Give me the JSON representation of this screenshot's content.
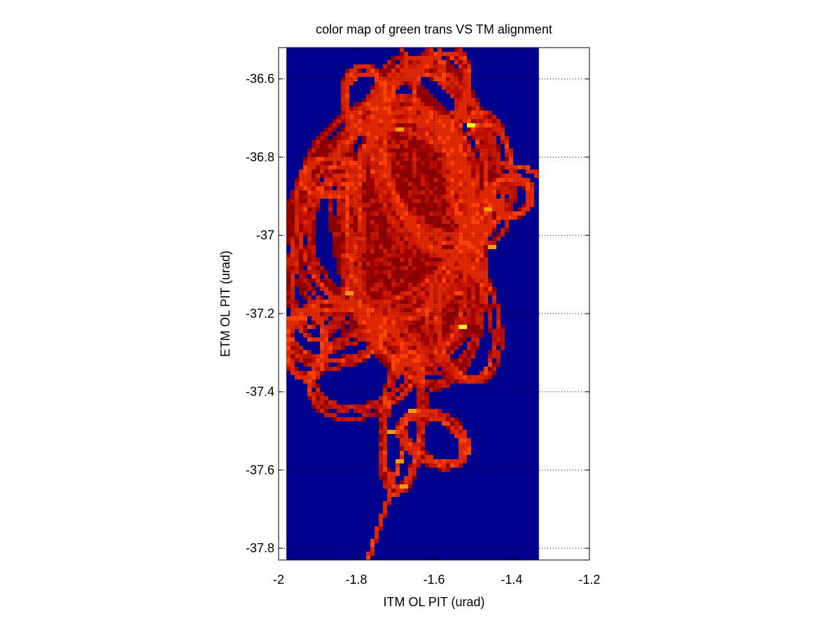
{
  "chart_data": {
    "type": "heatmap",
    "title": "color map of green trans VS TM alignment",
    "xlabel": "ITM OL PIT (urad)",
    "ylabel": "ETM OL PIT (urad)",
    "xlim": [
      -2.0,
      -1.2
    ],
    "ylim": [
      -37.83,
      -36.52
    ],
    "data_xlim": [
      -1.98,
      -1.33
    ],
    "x_ticks": [
      -2,
      -1.8,
      -1.6,
      -1.4,
      -1.2
    ],
    "x_tick_labels": [
      "-2",
      "-1.8",
      "-1.6",
      "-1.4",
      "-1.2"
    ],
    "y_ticks": [
      -36.6,
      -36.8,
      -37.0,
      -37.2,
      -37.4,
      -37.6,
      -37.8
    ],
    "y_tick_labels": [
      "-36.6",
      "-36.8",
      "-37",
      "-37.2",
      "-37.4",
      "-37.6",
      "-37.8"
    ],
    "grid": "dotted",
    "colormap": "jet",
    "background_color": "#00008f",
    "colors": {
      "background": "#00008f",
      "low": "#8b0000",
      "mid": "#cc1a00",
      "high": "#ff4000",
      "hot": "#ff9900",
      "peak": "#ffff00"
    },
    "hotspots": [
      {
        "x": -1.505,
        "y": -36.72,
        "level": "peak"
      },
      {
        "x": -1.695,
        "y": -36.73,
        "level": "hot"
      },
      {
        "x": -1.535,
        "y": -37.23,
        "level": "peak"
      },
      {
        "x": -1.945,
        "y": -37.21,
        "level": "high"
      },
      {
        "x": -1.68,
        "y": -37.64,
        "level": "hot"
      },
      {
        "x": -1.69,
        "y": -37.58,
        "level": "hot"
      },
      {
        "x": -1.455,
        "y": -37.03,
        "level": "hot"
      },
      {
        "x": -1.47,
        "y": -36.93,
        "level": "hot"
      },
      {
        "x": -1.66,
        "y": -37.45,
        "level": "hot"
      },
      {
        "x": -1.82,
        "y": -37.15,
        "level": "hot"
      },
      {
        "x": -1.715,
        "y": -37.5,
        "level": "hot"
      },
      {
        "x": -1.545,
        "y": -37.15,
        "level": "high"
      }
    ],
    "loops": [
      {
        "cx": -1.66,
        "cy": -37.0,
        "rx": 0.17,
        "ry": 0.36,
        "rot": -8
      },
      {
        "cx": -1.72,
        "cy": -36.95,
        "rx": 0.22,
        "ry": 0.28,
        "rot": 20
      },
      {
        "cx": -1.6,
        "cy": -36.8,
        "rx": 0.14,
        "ry": 0.25,
        "rot": -15
      },
      {
        "cx": -1.86,
        "cy": -37.25,
        "rx": 0.12,
        "ry": 0.08,
        "rot": 0
      },
      {
        "cx": -1.58,
        "cy": -36.62,
        "rx": 0.07,
        "ry": 0.1,
        "rot": 10
      },
      {
        "cx": -1.48,
        "cy": -36.85,
        "rx": 0.08,
        "ry": 0.16,
        "rot": 0
      },
      {
        "cx": -1.93,
        "cy": -37.28,
        "rx": 0.05,
        "ry": 0.09,
        "rot": 0
      },
      {
        "cx": -1.68,
        "cy": -37.48,
        "rx": 0.05,
        "ry": 0.18,
        "rot": 5
      },
      {
        "cx": -1.86,
        "cy": -36.85,
        "rx": 0.07,
        "ry": 0.05,
        "rot": 0
      },
      {
        "cx": -1.78,
        "cy": -37.35,
        "rx": 0.14,
        "ry": 0.1,
        "rot": -20
      },
      {
        "cx": -1.6,
        "cy": -37.52,
        "rx": 0.09,
        "ry": 0.06,
        "rot": 30
      },
      {
        "cx": -1.78,
        "cy": -36.65,
        "rx": 0.05,
        "ry": 0.08,
        "rot": 0
      },
      {
        "cx": -1.88,
        "cy": -37.05,
        "rx": 0.08,
        "ry": 0.22,
        "rot": 10
      },
      {
        "cx": -1.52,
        "cy": -37.22,
        "rx": 0.08,
        "ry": 0.16,
        "rot": -10
      },
      {
        "cx": -1.4,
        "cy": -36.9,
        "rx": 0.05,
        "ry": 0.05,
        "rot": 0
      }
    ],
    "tails": [
      {
        "points": [
          [
            -1.68,
            -37.55
          ],
          [
            -1.72,
            -37.68
          ],
          [
            -1.77,
            -37.83
          ]
        ]
      },
      {
        "points": [
          [
            -1.66,
            -36.6
          ],
          [
            -1.68,
            -36.52
          ]
        ]
      },
      {
        "points": [
          [
            -1.57,
            -36.6
          ],
          [
            -1.59,
            -36.52
          ]
        ]
      },
      {
        "points": [
          [
            -1.42,
            -36.82
          ],
          [
            -1.36,
            -36.83
          ],
          [
            -1.33,
            -36.85
          ]
        ]
      }
    ]
  }
}
